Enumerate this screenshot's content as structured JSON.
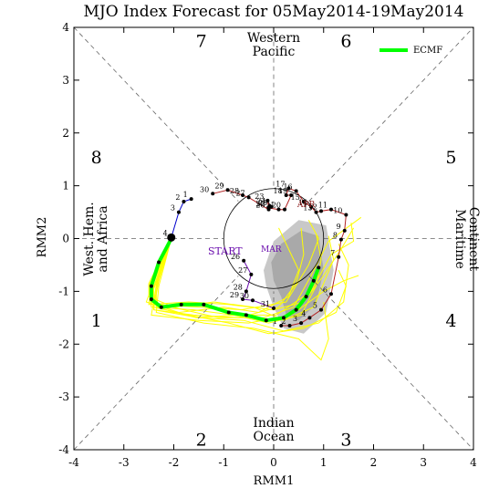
{
  "chart_data": {
    "type": "line",
    "title": "MJO Index Forecast for 05May2014-19May2014",
    "xlabel": "RMM1",
    "ylabel": "RMM2",
    "xlim": [
      -4,
      4
    ],
    "ylim": [
      -4,
      4
    ],
    "x_ticks": [
      -4,
      -3,
      -2,
      -1,
      0,
      1,
      2,
      3,
      4
    ],
    "y_ticks": [
      -4,
      -3,
      -2,
      -1,
      0,
      1,
      2,
      3,
      4
    ],
    "phase_numbers": [
      {
        "label": "1",
        "x": -3.55,
        "y": -1.55
      },
      {
        "label": "2",
        "x": -1.45,
        "y": -3.8
      },
      {
        "label": "3",
        "x": 1.45,
        "y": -3.8
      },
      {
        "label": "4",
        "x": 3.55,
        "y": -1.55
      },
      {
        "label": "5",
        "x": 3.55,
        "y": 1.55
      },
      {
        "label": "6",
        "x": 1.45,
        "y": 3.75
      },
      {
        "label": "7",
        "x": -1.45,
        "y": 3.75
      },
      {
        "label": "8",
        "x": -3.55,
        "y": 1.55
      }
    ],
    "region_labels": {
      "top": [
        "Western",
        "Pacific"
      ],
      "bottom": [
        "Indian",
        "Ocean"
      ],
      "left": [
        "West. Hem.",
        "and Africa"
      ],
      "right": [
        "Maritime",
        "Continent"
      ]
    },
    "legend": {
      "label": "ECMF",
      "position": "top-right"
    },
    "start_label": "START",
    "month_labels": [
      {
        "text": "MAR",
        "x": -0.05,
        "y": -0.25,
        "color": "#6a0dad"
      },
      {
        "text": "APR",
        "x": 0.65,
        "y": 0.6,
        "color": "#8b1a1a"
      }
    ],
    "series": [
      {
        "name": "March",
        "color": "#6a0dad",
        "points": [
          {
            "label": "26",
            "x": -0.6,
            "y": -0.42
          },
          {
            "label": "27",
            "x": -0.45,
            "y": -0.68
          },
          {
            "label": "28",
            "x": -0.55,
            "y": -1.0
          },
          {
            "label": "29",
            "x": -0.62,
            "y": -1.15
          },
          {
            "label": "30",
            "x": -0.42,
            "y": -1.17
          },
          {
            "label": "31",
            "x": 0.0,
            "y": -1.32
          }
        ]
      },
      {
        "name": "April",
        "color": "#b22222",
        "points": [
          {
            "label": "1",
            "x": 0.15,
            "y": -1.65
          },
          {
            "label": "2",
            "x": 0.32,
            "y": -1.65
          },
          {
            "label": "3",
            "x": 0.55,
            "y": -1.6
          },
          {
            "label": "4",
            "x": 0.72,
            "y": -1.5
          },
          {
            "label": "5",
            "x": 0.95,
            "y": -1.35
          },
          {
            "label": "6",
            "x": 1.15,
            "y": -1.05
          },
          {
            "label": "7",
            "x": 1.3,
            "y": -0.35
          },
          {
            "label": "8",
            "x": 1.35,
            "y": -0.02
          },
          {
            "label": "9",
            "x": 1.42,
            "y": 0.15
          },
          {
            "label": "10",
            "x": 1.45,
            "y": 0.45
          },
          {
            "label": "11",
            "x": 1.15,
            "y": 0.55
          },
          {
            "label": "12",
            "x": 0.95,
            "y": 0.52
          },
          {
            "label": "13",
            "x": 0.85,
            "y": 0.5
          },
          {
            "label": "14",
            "x": 0.75,
            "y": 0.6
          },
          {
            "label": "15",
            "x": 0.6,
            "y": 0.7
          },
          {
            "label": "16",
            "x": 0.45,
            "y": 0.9
          },
          {
            "label": "17",
            "x": 0.3,
            "y": 0.95
          },
          {
            "label": "18",
            "x": 0.25,
            "y": 0.82
          },
          {
            "label": "19",
            "x": 0.35,
            "y": 0.82
          },
          {
            "label": "20",
            "x": 0.22,
            "y": 0.55
          },
          {
            "label": "21",
            "x": 0.1,
            "y": 0.55
          },
          {
            "label": "22",
            "x": -0.1,
            "y": 0.58
          },
          {
            "label": "23",
            "x": -0.12,
            "y": 0.72
          },
          {
            "label": "24",
            "x": -0.08,
            "y": 0.62
          },
          {
            "label": "25",
            "x": -0.05,
            "y": 0.6
          },
          {
            "label": "26",
            "x": -0.1,
            "y": 0.55
          },
          {
            "label": "27",
            "x": -0.5,
            "y": 0.78
          },
          {
            "label": "28",
            "x": -0.62,
            "y": 0.82
          },
          {
            "label": "29",
            "x": -0.92,
            "y": 0.92
          },
          {
            "label": "30",
            "x": -1.22,
            "y": 0.85
          }
        ]
      },
      {
        "name": "May",
        "color": "#0000cd",
        "points": [
          {
            "label": "1",
            "x": -1.65,
            "y": 0.75
          },
          {
            "label": "2",
            "x": -1.8,
            "y": 0.7
          },
          {
            "label": "3",
            "x": -1.9,
            "y": 0.5
          },
          {
            "label": "4",
            "x": -2.05,
            "y": 0.02
          }
        ]
      },
      {
        "name": "ECMF",
        "color": "#00ff00",
        "points": [
          {
            "x": -2.05,
            "y": 0.0
          },
          {
            "x": -2.3,
            "y": -0.45
          },
          {
            "x": -2.45,
            "y": -0.9
          },
          {
            "x": -2.45,
            "y": -1.15
          },
          {
            "x": -2.25,
            "y": -1.3
          },
          {
            "x": -1.85,
            "y": -1.25
          },
          {
            "x": -1.4,
            "y": -1.25
          },
          {
            "x": -0.9,
            "y": -1.4
          },
          {
            "x": -0.55,
            "y": -1.45
          },
          {
            "x": -0.15,
            "y": -1.55
          },
          {
            "x": 0.2,
            "y": -1.5
          },
          {
            "x": 0.45,
            "y": -1.35
          },
          {
            "x": 0.65,
            "y": -1.1
          },
          {
            "x": 0.8,
            "y": -0.8
          },
          {
            "x": 0.9,
            "y": -0.55
          }
        ]
      }
    ],
    "ensemble": {
      "color": "#ffff00",
      "start": {
        "x": -2.05,
        "y": 0.0
      },
      "members": [
        [
          [
            -2.5,
            -0.9
          ],
          [
            -2.45,
            -1.3
          ],
          [
            -1.6,
            -1.35
          ],
          [
            -0.8,
            -1.45
          ],
          [
            -0.1,
            -1.6
          ],
          [
            0.55,
            -1.45
          ],
          [
            0.85,
            -0.9
          ],
          [
            0.95,
            -0.4
          ],
          [
            0.85,
            0.1
          ]
        ],
        [
          [
            -2.45,
            -0.95
          ],
          [
            -2.5,
            -1.25
          ],
          [
            -1.7,
            -1.2
          ],
          [
            -0.9,
            -1.25
          ],
          [
            0.0,
            -1.35
          ],
          [
            0.6,
            -1.2
          ],
          [
            1.0,
            -0.7
          ],
          [
            1.35,
            -0.2
          ],
          [
            1.6,
            0.2
          ]
        ],
        [
          [
            -2.35,
            -0.85
          ],
          [
            -2.4,
            -1.35
          ],
          [
            -1.5,
            -1.5
          ],
          [
            -0.6,
            -1.55
          ],
          [
            0.2,
            -1.75
          ],
          [
            0.9,
            -1.6
          ],
          [
            1.4,
            -1.2
          ],
          [
            1.5,
            -0.5
          ],
          [
            1.3,
            -0.1
          ]
        ],
        [
          [
            -2.4,
            -0.8
          ],
          [
            -2.55,
            -1.2
          ],
          [
            -1.9,
            -1.4
          ],
          [
            -1.0,
            -1.3
          ],
          [
            -0.3,
            -1.4
          ],
          [
            0.3,
            -1.1
          ],
          [
            0.5,
            -0.6
          ],
          [
            0.3,
            -0.2
          ],
          [
            0.1,
            0.2
          ]
        ],
        [
          [
            -2.3,
            -0.9
          ],
          [
            -2.35,
            -1.4
          ],
          [
            -1.4,
            -1.6
          ],
          [
            -0.4,
            -1.7
          ],
          [
            0.5,
            -1.9
          ],
          [
            0.95,
            -2.3
          ],
          [
            1.1,
            -1.9
          ],
          [
            1.0,
            -1.2
          ]
        ],
        [
          [
            -2.45,
            -0.9
          ],
          [
            -2.45,
            -1.2
          ],
          [
            -1.8,
            -1.35
          ],
          [
            -1.1,
            -1.5
          ],
          [
            -0.2,
            -1.5
          ],
          [
            0.4,
            -1.3
          ],
          [
            0.75,
            -0.7
          ],
          [
            1.1,
            -0.05
          ],
          [
            1.75,
            0.4
          ]
        ],
        [
          [
            -2.4,
            -0.95
          ],
          [
            -2.4,
            -1.35
          ],
          [
            -1.6,
            -1.45
          ],
          [
            -0.7,
            -1.5
          ],
          [
            0.1,
            -1.3
          ],
          [
            0.45,
            -0.85
          ],
          [
            0.6,
            -0.3
          ],
          [
            0.55,
            0.2
          ]
        ],
        [
          [
            -2.35,
            -0.9
          ],
          [
            -2.45,
            -1.45
          ],
          [
            -1.5,
            -1.55
          ],
          [
            -0.5,
            -1.6
          ],
          [
            0.35,
            -1.45
          ],
          [
            1.0,
            -1.0
          ],
          [
            1.4,
            -0.8
          ],
          [
            1.7,
            -0.7
          ]
        ],
        [
          [
            -2.5,
            -0.85
          ],
          [
            -2.5,
            -1.1
          ],
          [
            -2.0,
            -1.3
          ],
          [
            -1.2,
            -1.2
          ],
          [
            -0.4,
            -1.3
          ],
          [
            0.2,
            -1.55
          ],
          [
            0.8,
            -1.3
          ],
          [
            1.2,
            -0.4
          ],
          [
            1.1,
            0.05
          ]
        ],
        [
          [
            -2.3,
            -0.8
          ],
          [
            -2.4,
            -1.3
          ],
          [
            -1.7,
            -1.45
          ],
          [
            -0.9,
            -1.6
          ],
          [
            -0.1,
            -1.8
          ],
          [
            0.6,
            -1.7
          ],
          [
            1.25,
            -1.4
          ],
          [
            1.45,
            -0.9
          ],
          [
            1.3,
            -0.6
          ]
        ],
        [
          [
            -2.4,
            -0.9
          ],
          [
            -2.45,
            -1.25
          ],
          [
            -1.45,
            -1.3
          ],
          [
            -0.65,
            -1.35
          ],
          [
            0.25,
            -1.2
          ],
          [
            0.7,
            -0.5
          ],
          [
            0.9,
            0.0
          ],
          [
            0.7,
            0.35
          ]
        ],
        [
          [
            -2.35,
            -0.95
          ],
          [
            -2.35,
            -1.3
          ],
          [
            -1.55,
            -1.5
          ],
          [
            -0.75,
            -1.45
          ],
          [
            0.05,
            -1.45
          ],
          [
            0.75,
            -1.0
          ],
          [
            1.15,
            -0.3
          ],
          [
            1.6,
            -0.05
          ],
          [
            1.55,
            0.3
          ]
        ]
      ]
    },
    "spread_polygons": [
      {
        "shade": "#c8c8c8",
        "points": [
          [
            -0.2,
            -0.6
          ],
          [
            0.0,
            -0.05
          ],
          [
            0.5,
            0.35
          ],
          [
            1.05,
            0.25
          ],
          [
            1.2,
            -0.6
          ],
          [
            1.05,
            -1.4
          ],
          [
            0.6,
            -1.8
          ],
          [
            0.2,
            -1.7
          ],
          [
            0.0,
            -1.3
          ],
          [
            -0.15,
            -0.9
          ]
        ]
      },
      {
        "shade": "#a9a9a9",
        "points": [
          [
            -0.05,
            -0.45
          ],
          [
            0.15,
            -0.1
          ],
          [
            0.55,
            0.15
          ],
          [
            0.9,
            0.05
          ],
          [
            1.0,
            -0.6
          ],
          [
            0.85,
            -1.25
          ],
          [
            0.5,
            -1.55
          ],
          [
            0.25,
            -1.45
          ],
          [
            0.15,
            -1.1
          ],
          [
            0.0,
            -0.8
          ]
        ]
      }
    ]
  }
}
